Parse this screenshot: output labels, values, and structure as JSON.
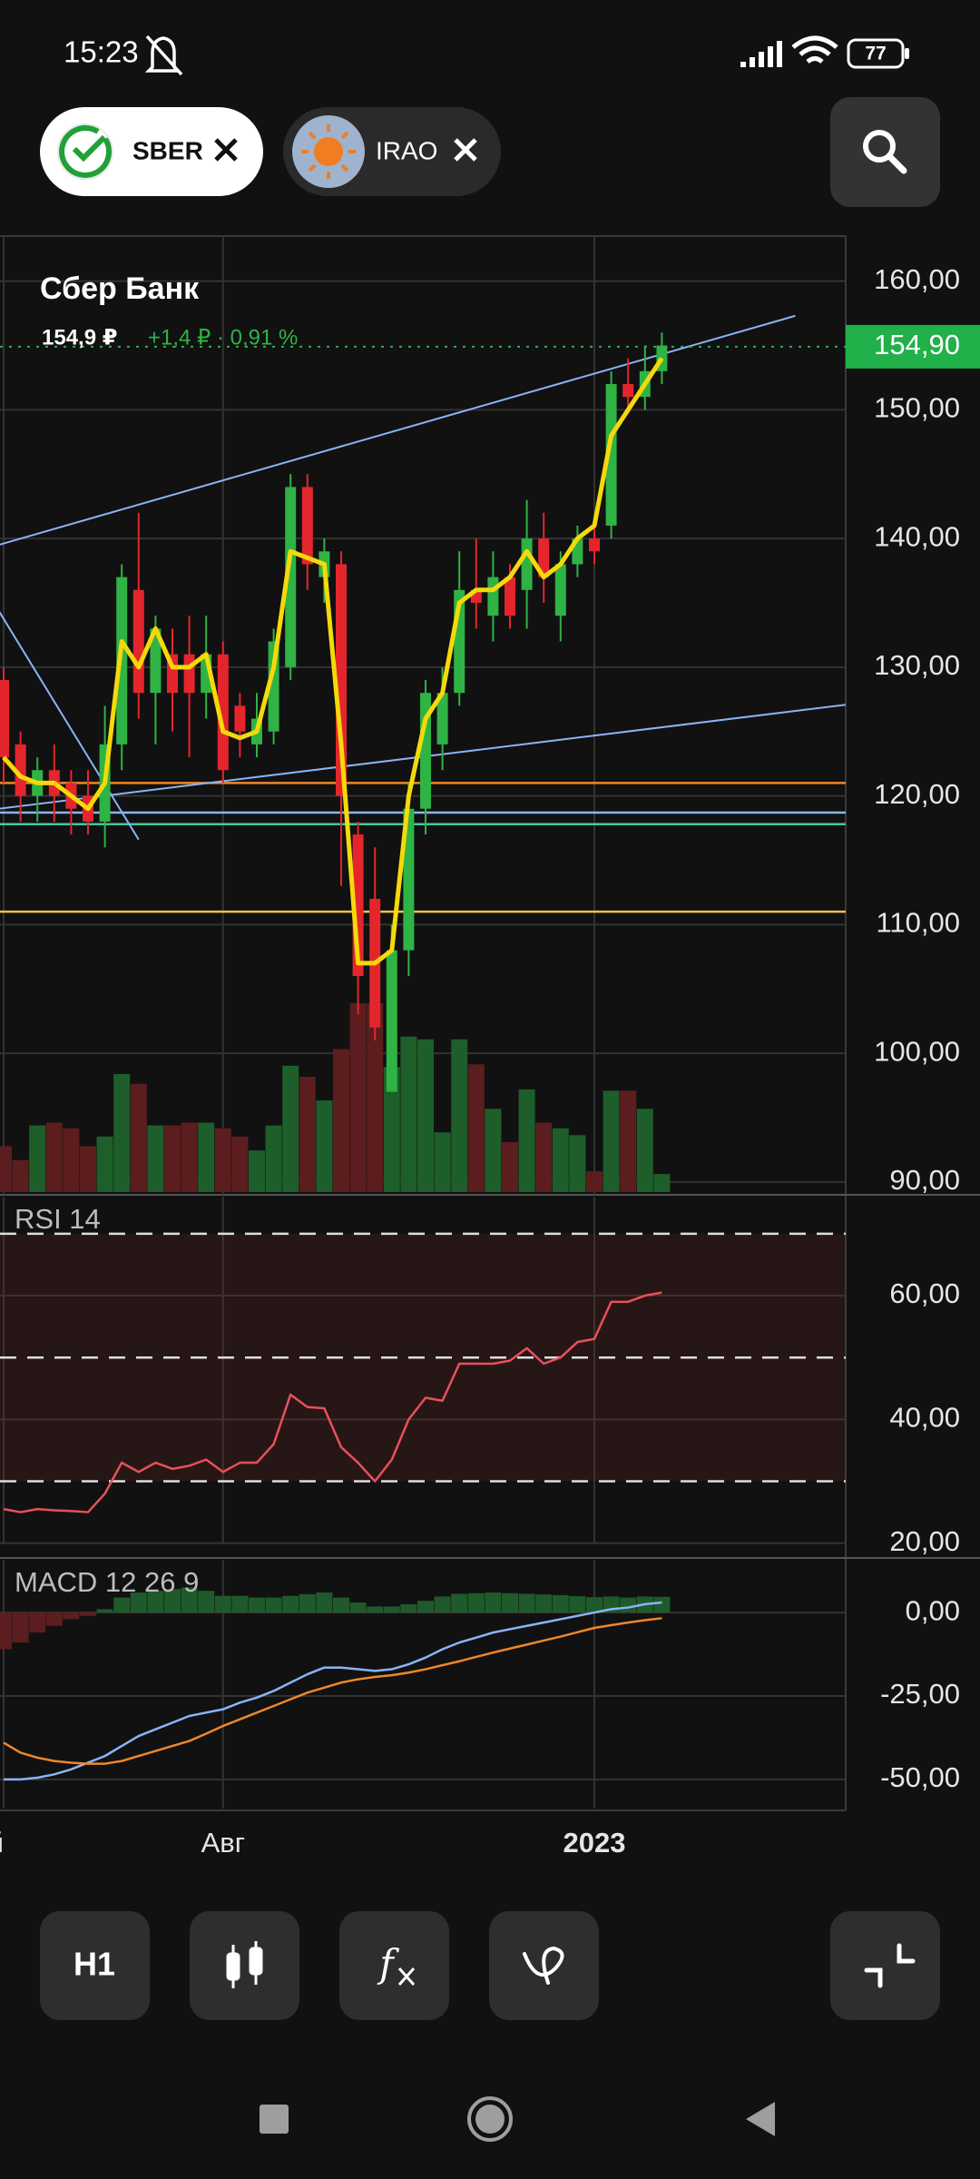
{
  "status_bar": {
    "time": "15:23",
    "battery": "77"
  },
  "tabs": [
    {
      "label": "SBER"
    },
    {
      "label": "IRAO"
    }
  ],
  "toolbar": {
    "interval": "H1"
  },
  "chart_data": [
    {
      "type": "candlestick",
      "title": "Сбер Банк",
      "price_label": "154,9 ₽",
      "change_label": "+1,4 ₽ · 0,91 %",
      "categories": [
        "ай",
        null,
        null,
        null,
        null,
        null,
        null,
        null,
        null,
        null,
        null,
        null,
        null,
        "Авг",
        null,
        null,
        null,
        null,
        null,
        null,
        null,
        null,
        null,
        null,
        null,
        null,
        null,
        null,
        null,
        null,
        null,
        null,
        null,
        null,
        null,
        "2023",
        null,
        null,
        null,
        null
      ],
      "open": [
        129,
        124,
        120,
        122,
        121,
        120,
        118,
        124,
        136,
        128,
        131,
        131,
        128,
        131,
        127,
        124,
        125,
        130,
        144,
        137,
        138,
        117,
        112,
        97,
        108,
        119,
        124,
        128,
        136,
        134,
        137,
        136,
        140,
        134,
        138,
        140,
        141,
        152,
        151,
        153
      ],
      "high": [
        130,
        125,
        123,
        124,
        122,
        122,
        127,
        138,
        142,
        134,
        133,
        134,
        134,
        132,
        128,
        128,
        133,
        145,
        145,
        140,
        139,
        118,
        116,
        110,
        121,
        129,
        130,
        139,
        140,
        139,
        138,
        143,
        142,
        139,
        141,
        141,
        153,
        154,
        155,
        156
      ],
      "low": [
        121,
        118,
        118,
        118,
        117,
        117,
        116,
        122,
        126,
        124,
        125,
        123,
        126,
        121,
        123,
        123,
        124,
        129,
        136,
        135,
        113,
        103,
        101,
        97,
        106,
        117,
        122,
        127,
        133,
        132,
        133,
        133,
        135,
        132,
        137,
        138,
        140,
        150,
        150,
        152
      ],
      "close": [
        123,
        120,
        122,
        120,
        119,
        118,
        124,
        137,
        128,
        133,
        128,
        128,
        131,
        122,
        125,
        126,
        132,
        144,
        138,
        139,
        120,
        106,
        102,
        108,
        119,
        128,
        128,
        136,
        135,
        137,
        134,
        140,
        137,
        138,
        140,
        139,
        152,
        151,
        153,
        155
      ],
      "volume": [
        33,
        23,
        48,
        50,
        46,
        33,
        40,
        85,
        78,
        48,
        48,
        50,
        50,
        46,
        40,
        30,
        48,
        91,
        83,
        66,
        103,
        136,
        136,
        90,
        112,
        110,
        43,
        110,
        92,
        60,
        36,
        74,
        50,
        46,
        41,
        15,
        73,
        73,
        60,
        13
      ],
      "ma": {
        "color": "#f5d90a",
        "values": [
          123,
          121.5,
          121,
          121,
          120,
          119,
          121,
          132,
          130,
          133,
          130,
          130,
          131,
          125,
          124.5,
          125,
          130,
          139,
          138.5,
          138,
          124,
          107,
          107,
          108,
          120,
          126,
          128,
          135,
          136,
          136,
          137,
          139,
          137,
          138,
          140,
          141,
          148,
          150,
          152,
          154
        ]
      },
      "levels": [
        {
          "value": 121,
          "color": "#f0862a"
        },
        {
          "value": 118.7,
          "color": "#8ab4f8"
        },
        {
          "value": 117.8,
          "color": "#3fc9a0"
        },
        {
          "value": 111,
          "color": "#f5c242"
        }
      ],
      "trendlines": [
        {
          "x": [
            -0.3,
            46.9
          ],
          "y": [
            139.5,
            157.3
          ],
          "color": "#8ab4f8"
        },
        {
          "x": [
            -0.3,
            50
          ],
          "y": [
            119,
            127.1
          ],
          "color": "#8ab4f8"
        },
        {
          "x": [
            -0.3,
            8
          ],
          "y": [
            134.4,
            116.6
          ],
          "color": "#8ab4f8"
        }
      ],
      "last_price": {
        "value": 154.9,
        "label": "154,90"
      },
      "up_color": "#2fb344",
      "down_color": "#e4262c",
      "volume_up_color": "#1d5e2b",
      "volume_down_color": "#5c1d1f",
      "ylim": [
        89,
        163.5
      ],
      "yticks": [
        {
          "value": 160,
          "label": "160,00"
        },
        {
          "value": 150,
          "label": "150,00"
        },
        {
          "value": 140,
          "label": "140,00"
        },
        {
          "value": 130,
          "label": "130,00"
        },
        {
          "value": 120,
          "label": "120,00"
        },
        {
          "value": 110,
          "label": "110,00"
        },
        {
          "value": 100,
          "label": "100,00"
        },
        {
          "value": 90,
          "label": "90,00"
        }
      ],
      "grid": true
    },
    {
      "type": "line",
      "title": "RSI 14",
      "values": [
        25.5,
        25,
        25.5,
        25.3,
        25.2,
        25,
        28,
        33,
        31.5,
        33,
        32,
        32.5,
        33.5,
        31.5,
        33,
        33,
        36,
        44,
        42,
        41.8,
        35.5,
        33,
        30,
        33.5,
        40,
        43.5,
        43,
        49,
        49,
        49,
        49.5,
        51.5,
        49,
        50,
        52.5,
        53,
        59,
        59,
        60,
        60.5
      ],
      "color": "#e8505b",
      "levels": [
        30,
        50,
        70
      ],
      "ylim": [
        19.8,
        76
      ],
      "yticks": [
        {
          "value": 60,
          "label": "60,00"
        },
        {
          "value": 40,
          "label": "40,00"
        },
        {
          "value": 20,
          "label": "20,00"
        }
      ],
      "grid": true
    },
    {
      "type": "macd",
      "title": "MACD 12 26 9",
      "histogram": {
        "color": "#1f5a2a",
        "negative_color": "#5c1d1f",
        "values": [
          -11,
          -9,
          -6,
          -4,
          -2,
          -1,
          1,
          4.5,
          6,
          6.5,
          7,
          7.5,
          6.5,
          5,
          5,
          4.5,
          4.5,
          5,
          5.5,
          6,
          4.5,
          3,
          1.8,
          1.8,
          2.5,
          3.5,
          4.8,
          5.6,
          5.8,
          6,
          5.8,
          5.6,
          5.4,
          5.2,
          4.9,
          4.6,
          4.8,
          4.5,
          4.8,
          4.7
        ]
      },
      "macd": {
        "color": "#8ab4f8",
        "values": [
          -50,
          -50,
          -49.5,
          -48.5,
          -47,
          -45,
          -43,
          -40,
          -37,
          -35,
          -33,
          -31,
          -30,
          -29,
          -27,
          -25.5,
          -23.5,
          -21,
          -18.5,
          -16.5,
          -16.5,
          -17,
          -17.5,
          -17,
          -15.5,
          -13.5,
          -11,
          -9,
          -7.5,
          -6,
          -5,
          -4,
          -3,
          -2,
          -1,
          0,
          1,
          1.5,
          2.5,
          3
        ]
      },
      "signal": {
        "color": "#f0862a",
        "values": [
          -39,
          -42,
          -43.5,
          -44.5,
          -45,
          -45.3,
          -45.3,
          -44.5,
          -43,
          -41.5,
          -40,
          -38.5,
          -36.3,
          -34,
          -32,
          -30,
          -28,
          -26,
          -24,
          -22.5,
          -21,
          -20,
          -19.3,
          -18.8,
          -18,
          -17,
          -15.8,
          -14.6,
          -13.3,
          -12,
          -10.8,
          -9.6,
          -8.4,
          -7.2,
          -5.9,
          -4.6,
          -3.8,
          -3,
          -2.3,
          -1.7
        ]
      },
      "ylim": [
        -58.75,
        15.8
      ],
      "yticks": [
        {
          "value": 0,
          "label": "0,00"
        },
        {
          "value": -25,
          "label": "-25,00"
        },
        {
          "value": -50,
          "label": "-50,00"
        }
      ],
      "grid": true
    }
  ]
}
